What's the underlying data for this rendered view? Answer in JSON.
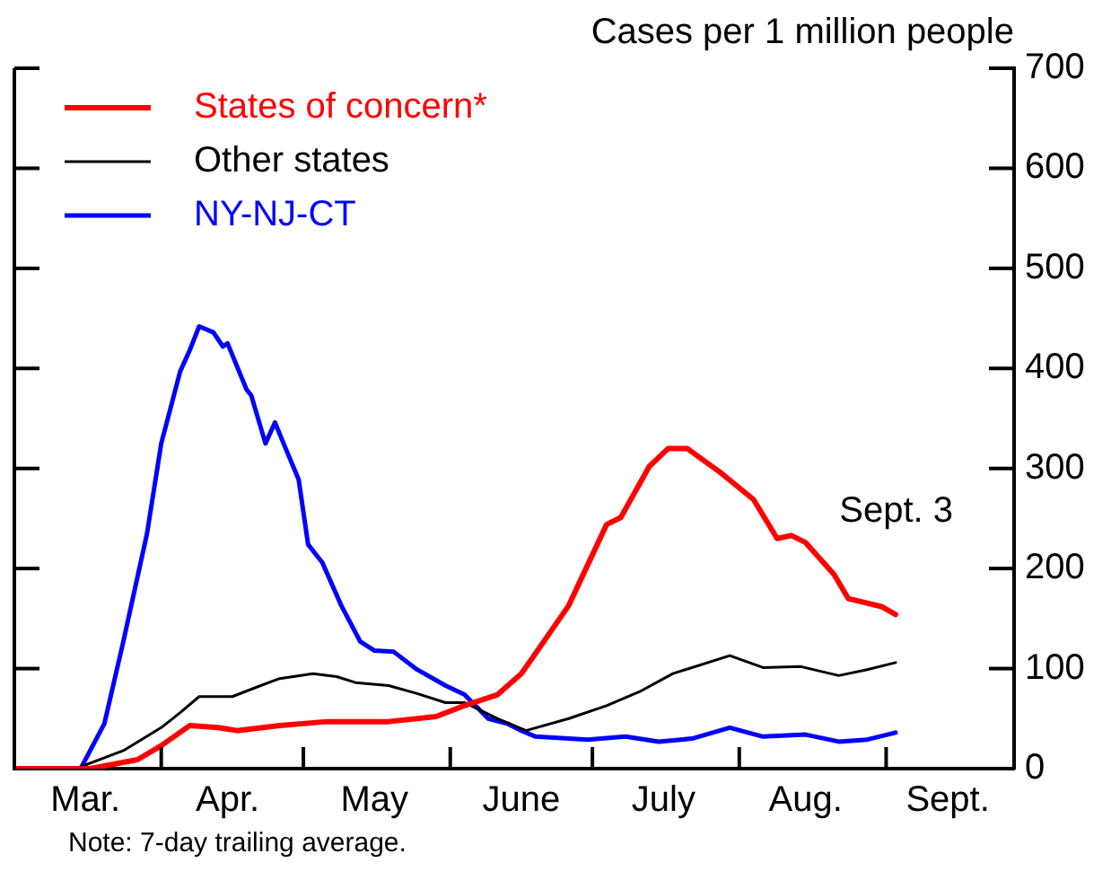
{
  "chart_data": {
    "type": "line",
    "ylabel": "Cases per 1 million people",
    "xlim": [
      "--03-01",
      "--09-28"
    ],
    "ylim": [
      0,
      700
    ],
    "yticks": [
      0,
      100,
      200,
      300,
      400,
      500,
      600,
      700
    ],
    "xticks": [
      {
        "value": "--04-01",
        "label": null
      },
      {
        "value": "--05-01",
        "label": null
      },
      {
        "value": "--06-01",
        "label": null
      },
      {
        "value": "--07-01",
        "label": null
      },
      {
        "value": "--08-01",
        "label": null
      },
      {
        "value": "--09-01",
        "label": null
      },
      {
        "value": "--03-16",
        "label": "Mar."
      },
      {
        "value": "--04-15",
        "label": "Apr."
      },
      {
        "value": "--05-16",
        "label": "May"
      },
      {
        "value": "--06-16",
        "label": "June"
      },
      {
        "value": "--07-16",
        "label": "July"
      },
      {
        "value": "--08-15",
        "label": "Aug."
      },
      {
        "value": "--09-14",
        "label": "Sept."
      }
    ],
    "grid": false,
    "legend": "top left",
    "marker": "none",
    "line_style": "solid",
    "annotations": [
      "Sept. 3",
      "Note: 7-day trailing average."
    ],
    "series": [
      {
        "name": "States of concern*",
        "color": "#ff0000",
        "x": [
          "--03-01",
          "--03-17",
          "--03-27",
          "--04-01",
          "--04-07",
          "--04-13",
          "--04-17",
          "--04-26",
          "--05-06",
          "--05-19",
          "--05-29",
          "--06-04",
          "--06-11",
          "--06-16",
          "--06-19",
          "--06-26",
          "--07-04",
          "--07-07",
          "--07-13",
          "--07-17",
          "--07-21",
          "--07-28",
          "--08-04",
          "--08-09",
          "--08-12",
          "--08-15",
          "--08-21",
          "--08-24",
          "--08-31",
          "--09-03"
        ],
        "values": [
          0,
          0,
          9,
          23,
          43,
          41,
          38,
          43,
          47,
          47,
          52,
          63,
          74,
          95,
          115,
          163,
          244,
          251,
          302,
          320,
          320,
          296,
          269,
          230,
          233,
          226,
          194,
          170,
          162,
          154
        ]
      },
      {
        "name": "Other states",
        "color": "#000000",
        "x": [
          "--03-01",
          "--03-14",
          "--03-24",
          "--04-01",
          "--04-05",
          "--04-09",
          "--04-16",
          "--04-22",
          "--04-26",
          "--05-03",
          "--05-08",
          "--05-12",
          "--05-19",
          "--05-25",
          "--05-31",
          "--06-04",
          "--06-11",
          "--06-17",
          "--06-26",
          "--07-04",
          "--07-11",
          "--07-18",
          "--07-30",
          "--08-06",
          "--08-14",
          "--08-22",
          "--08-28",
          "--09-03"
        ],
        "values": [
          0,
          0,
          18,
          41,
          56,
          72,
          72,
          83,
          90,
          95,
          92,
          86,
          83,
          75,
          66,
          66,
          50,
          38,
          50,
          63,
          77,
          95,
          113,
          101,
          102,
          93,
          99,
          106
        ]
      },
      {
        "name": "NY-NJ-CT",
        "color": "#0000ff",
        "x": [
          "--03-01",
          "--03-15",
          "--03-20",
          "--03-24",
          "--03-29",
          "--04-01",
          "--04-05",
          "--04-07",
          "--04-09",
          "--04-12",
          "--04-14",
          "--04-15",
          "--04-19",
          "--04-20",
          "--04-23",
          "--04-25",
          "--04-27",
          "--04-30",
          "--05-02",
          "--05-05",
          "--05-09",
          "--05-13",
          "--05-16",
          "--05-20",
          "--05-25",
          "--05-31",
          "--06-04",
          "--06-09",
          "--06-13",
          "--06-16",
          "--06-19",
          "--06-30",
          "--07-08",
          "--07-15",
          "--07-22",
          "--07-30",
          "--08-06",
          "--08-15",
          "--08-22",
          "--08-28",
          "--09-03"
        ],
        "values": [
          0,
          0,
          45,
          127,
          235,
          325,
          397,
          418,
          442,
          436,
          422,
          425,
          379,
          373,
          325,
          346,
          323,
          289,
          224,
          206,
          163,
          127,
          118,
          117,
          99,
          83,
          74,
          50,
          45,
          38,
          32,
          29,
          32,
          27,
          30,
          41,
          32,
          34,
          27,
          29,
          36
        ]
      }
    ]
  }
}
